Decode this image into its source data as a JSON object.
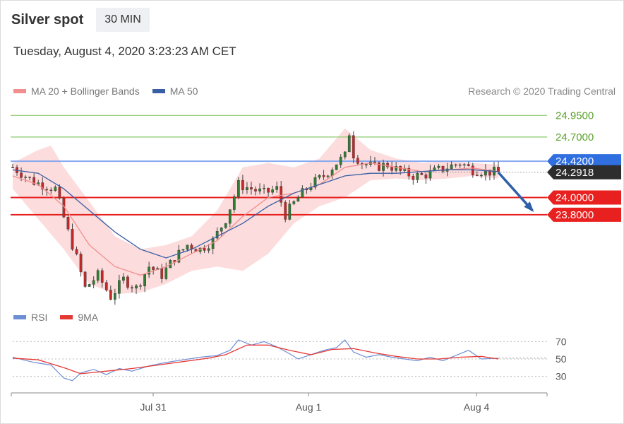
{
  "header": {
    "title": "Silver spot",
    "timeframe": "30 MIN",
    "datetime": "Tuesday, August 4, 2020 3:23:23 AM CET"
  },
  "legend": {
    "ma20": "MA 20 + Bollinger Bands",
    "ma50": "MA 50",
    "credit": "Research © 2020 Trading Central",
    "rsi": "RSI",
    "rsi_ma": "9MA"
  },
  "colors": {
    "ma20": "#f28e8e",
    "ma50": "#3a5fa5",
    "band": "#fbd6d6",
    "resistance": "#8ccb6c",
    "pivot": "#86a8f0",
    "support": "#e8201f",
    "price_label": "#2d2d2d",
    "arrow": "#2e5fa8",
    "candle_up": "#2e7d32",
    "candle_down": "#c62828",
    "rsi": "#6d8fd6",
    "rsi_ma": "#e53935"
  },
  "chart_data": {
    "type": "candlestick",
    "symbol": "Silver spot",
    "interval": "30 MIN",
    "x_tick_labels": [
      "Jul 31",
      "Aug 1",
      "Aug 4"
    ],
    "price_ylim": [
      22.85,
      25.1
    ],
    "current_price": "24.2918",
    "levels": [
      {
        "value": 24.95,
        "label": "24.9500",
        "kind": "resistance"
      },
      {
        "value": 24.7,
        "label": "24.7000",
        "kind": "resistance"
      },
      {
        "value": 24.42,
        "label": "24.4200",
        "kind": "pivot"
      },
      {
        "value": 24.0,
        "label": "24.0000",
        "kind": "support"
      },
      {
        "value": 23.8,
        "label": "23.8000",
        "kind": "support"
      }
    ],
    "close_path": [
      [
        0,
        24.35
      ],
      [
        5,
        24.18
      ],
      [
        10,
        24.1
      ],
      [
        13,
        23.6
      ],
      [
        15,
        23.3
      ],
      [
        17,
        22.95
      ],
      [
        20,
        23.1
      ],
      [
        23,
        22.85
      ],
      [
        26,
        23.05
      ],
      [
        29,
        22.95
      ],
      [
        32,
        23.2
      ],
      [
        35,
        23.1
      ],
      [
        38,
        23.3
      ],
      [
        41,
        23.45
      ],
      [
        44,
        23.4
      ],
      [
        47,
        23.5
      ],
      [
        50,
        23.75
      ],
      [
        53,
        24.15
      ],
      [
        56,
        24.1
      ],
      [
        59,
        24.05
      ],
      [
        62,
        24.1
      ],
      [
        64,
        23.8
      ],
      [
        67,
        24.0
      ],
      [
        70,
        24.15
      ],
      [
        73,
        24.25
      ],
      [
        76,
        24.4
      ],
      [
        78,
        24.48
      ],
      [
        79,
        24.75
      ],
      [
        80,
        24.5
      ],
      [
        82,
        24.4
      ],
      [
        85,
        24.35
      ],
      [
        88,
        24.38
      ],
      [
        91,
        24.3
      ],
      [
        94,
        24.25
      ],
      [
        96,
        24.25
      ],
      [
        99,
        24.3
      ],
      [
        102,
        24.35
      ],
      [
        105,
        24.4
      ],
      [
        108,
        24.32
      ],
      [
        111,
        24.3
      ],
      [
        114,
        24.29
      ]
    ],
    "ma20_path": [
      [
        0,
        24.25
      ],
      [
        6,
        24.15
      ],
      [
        12,
        23.9
      ],
      [
        18,
        23.45
      ],
      [
        24,
        23.2
      ],
      [
        30,
        23.1
      ],
      [
        36,
        23.2
      ],
      [
        42,
        23.35
      ],
      [
        48,
        23.5
      ],
      [
        54,
        23.78
      ],
      [
        60,
        24.0
      ],
      [
        66,
        24.05
      ],
      [
        72,
        24.15
      ],
      [
        78,
        24.35
      ],
      [
        84,
        24.4
      ],
      [
        90,
        24.35
      ],
      [
        96,
        24.3
      ],
      [
        102,
        24.32
      ],
      [
        108,
        24.34
      ],
      [
        114,
        24.3
      ]
    ],
    "ma50_path": [
      [
        0,
        24.32
      ],
      [
        6,
        24.28
      ],
      [
        12,
        24.1
      ],
      [
        18,
        23.85
      ],
      [
        24,
        23.6
      ],
      [
        30,
        23.4
      ],
      [
        36,
        23.3
      ],
      [
        42,
        23.4
      ],
      [
        48,
        23.55
      ],
      [
        54,
        23.7
      ],
      [
        60,
        23.9
      ],
      [
        66,
        24.05
      ],
      [
        72,
        24.15
      ],
      [
        78,
        24.25
      ],
      [
        84,
        24.28
      ],
      [
        90,
        24.28
      ],
      [
        96,
        24.3
      ],
      [
        102,
        24.32
      ],
      [
        108,
        24.32
      ],
      [
        114,
        24.3
      ]
    ],
    "band_upper_path": [
      [
        0,
        24.4
      ],
      [
        6,
        24.55
      ],
      [
        9,
        24.6
      ],
      [
        12,
        24.35
      ],
      [
        18,
        23.95
      ],
      [
        24,
        23.55
      ],
      [
        30,
        23.4
      ],
      [
        36,
        23.45
      ],
      [
        42,
        23.55
      ],
      [
        48,
        23.85
      ],
      [
        54,
        24.35
      ],
      [
        60,
        24.4
      ],
      [
        66,
        24.35
      ],
      [
        72,
        24.45
      ],
      [
        78,
        24.8
      ],
      [
        84,
        24.55
      ],
      [
        90,
        24.45
      ],
      [
        96,
        24.4
      ],
      [
        102,
        24.42
      ],
      [
        108,
        24.4
      ],
      [
        114,
        24.38
      ]
    ],
    "band_lower_path": [
      [
        0,
        24.1
      ],
      [
        6,
        23.75
      ],
      [
        12,
        23.4
      ],
      [
        18,
        23.0
      ],
      [
        24,
        22.88
      ],
      [
        30,
        22.9
      ],
      [
        36,
        23.0
      ],
      [
        42,
        23.15
      ],
      [
        48,
        23.2
      ],
      [
        54,
        23.15
      ],
      [
        60,
        23.35
      ],
      [
        66,
        23.7
      ],
      [
        72,
        23.9
      ],
      [
        78,
        24.0
      ],
      [
        84,
        24.2
      ],
      [
        90,
        24.22
      ],
      [
        96,
        24.2
      ],
      [
        102,
        24.22
      ],
      [
        108,
        24.25
      ],
      [
        114,
        24.22
      ]
    ],
    "forecast_arrow": {
      "from": [
        114,
        24.29
      ],
      "to": [
        122,
        23.85
      ]
    },
    "rsi": {
      "ylim": [
        15,
        85
      ],
      "tick_labels": [
        "70",
        "50",
        "30"
      ],
      "ticks": [
        70,
        50,
        30
      ],
      "rsi_path": [
        [
          0,
          52
        ],
        [
          5,
          46
        ],
        [
          9,
          43
        ],
        [
          12,
          28
        ],
        [
          14,
          25
        ],
        [
          16,
          34
        ],
        [
          19,
          38
        ],
        [
          22,
          32
        ],
        [
          25,
          39
        ],
        [
          28,
          36
        ],
        [
          32,
          42
        ],
        [
          36,
          46
        ],
        [
          40,
          49
        ],
        [
          44,
          52
        ],
        [
          48,
          54
        ],
        [
          51,
          60
        ],
        [
          53,
          72
        ],
        [
          56,
          66
        ],
        [
          59,
          70
        ],
        [
          62,
          64
        ],
        [
          65,
          56
        ],
        [
          67,
          50
        ],
        [
          70,
          55
        ],
        [
          73,
          60
        ],
        [
          76,
          63
        ],
        [
          78,
          72
        ],
        [
          80,
          58
        ],
        [
          83,
          52
        ],
        [
          86,
          55
        ],
        [
          89,
          52
        ],
        [
          92,
          50
        ],
        [
          95,
          48
        ],
        [
          98,
          52
        ],
        [
          101,
          48
        ],
        [
          104,
          54
        ],
        [
          107,
          60
        ],
        [
          110,
          50
        ],
        [
          114,
          51
        ]
      ],
      "rsi_ma_path": [
        [
          0,
          51
        ],
        [
          6,
          49
        ],
        [
          12,
          40
        ],
        [
          16,
          33
        ],
        [
          22,
          36
        ],
        [
          28,
          39
        ],
        [
          34,
          43
        ],
        [
          40,
          47
        ],
        [
          46,
          51
        ],
        [
          50,
          55
        ],
        [
          55,
          66
        ],
        [
          60,
          66
        ],
        [
          65,
          60
        ],
        [
          70,
          55
        ],
        [
          75,
          61
        ],
        [
          80,
          62
        ],
        [
          85,
          57
        ],
        [
          90,
          53
        ],
        [
          95,
          50
        ],
        [
          100,
          50
        ],
        [
          105,
          52
        ],
        [
          110,
          53
        ],
        [
          114,
          50
        ]
      ]
    }
  }
}
